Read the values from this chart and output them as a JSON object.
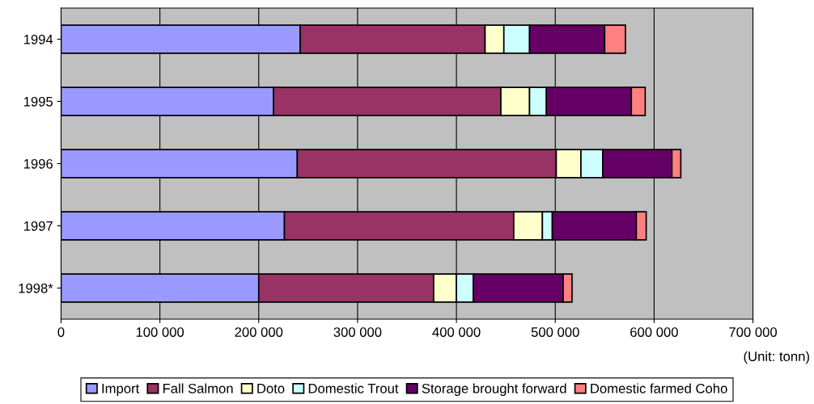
{
  "chart_data": {
    "type": "bar",
    "orientation": "horizontal",
    "stacked": true,
    "categories": [
      "1994",
      "1995",
      "1996",
      "1997",
      "1998*"
    ],
    "series": [
      {
        "name": "Import",
        "color": "#9999ff",
        "values": [
          242000,
          215000,
          239000,
          226000,
          200000
        ]
      },
      {
        "name": "Fall Salmon",
        "color": "#993366",
        "values": [
          187000,
          230000,
          262000,
          232000,
          177000
        ]
      },
      {
        "name": "Doto",
        "color": "#ffffcc",
        "values": [
          19000,
          29000,
          25000,
          29000,
          23000
        ]
      },
      {
        "name": "Domestic Trout",
        "color": "#ccffff",
        "values": [
          26000,
          17000,
          22000,
          10000,
          17000
        ]
      },
      {
        "name": "Storage brought forward",
        "color": "#660066",
        "values": [
          76000,
          86000,
          70000,
          85000,
          91000
        ]
      },
      {
        "name": "Domestic farmed Coho",
        "color": "#ff8080",
        "values": [
          21000,
          14000,
          9000,
          10000,
          9000
        ]
      }
    ],
    "xlim": [
      0,
      700000
    ],
    "xticks": [
      0,
      {
        "value": 100000,
        "label": "100 000"
      },
      {
        "value": 200000,
        "label": "200 000"
      },
      {
        "value": 300000,
        "label": "300 000"
      },
      {
        "value": 400000,
        "label": "400 000"
      },
      {
        "value": 500000,
        "label": "500 000"
      },
      {
        "value": 600000,
        "label": "600 000"
      },
      {
        "value": 700000,
        "label": "700 000"
      }
    ],
    "grid": "x",
    "legend": "bottom",
    "annotations": [
      "(Unit: tonn)"
    ]
  }
}
